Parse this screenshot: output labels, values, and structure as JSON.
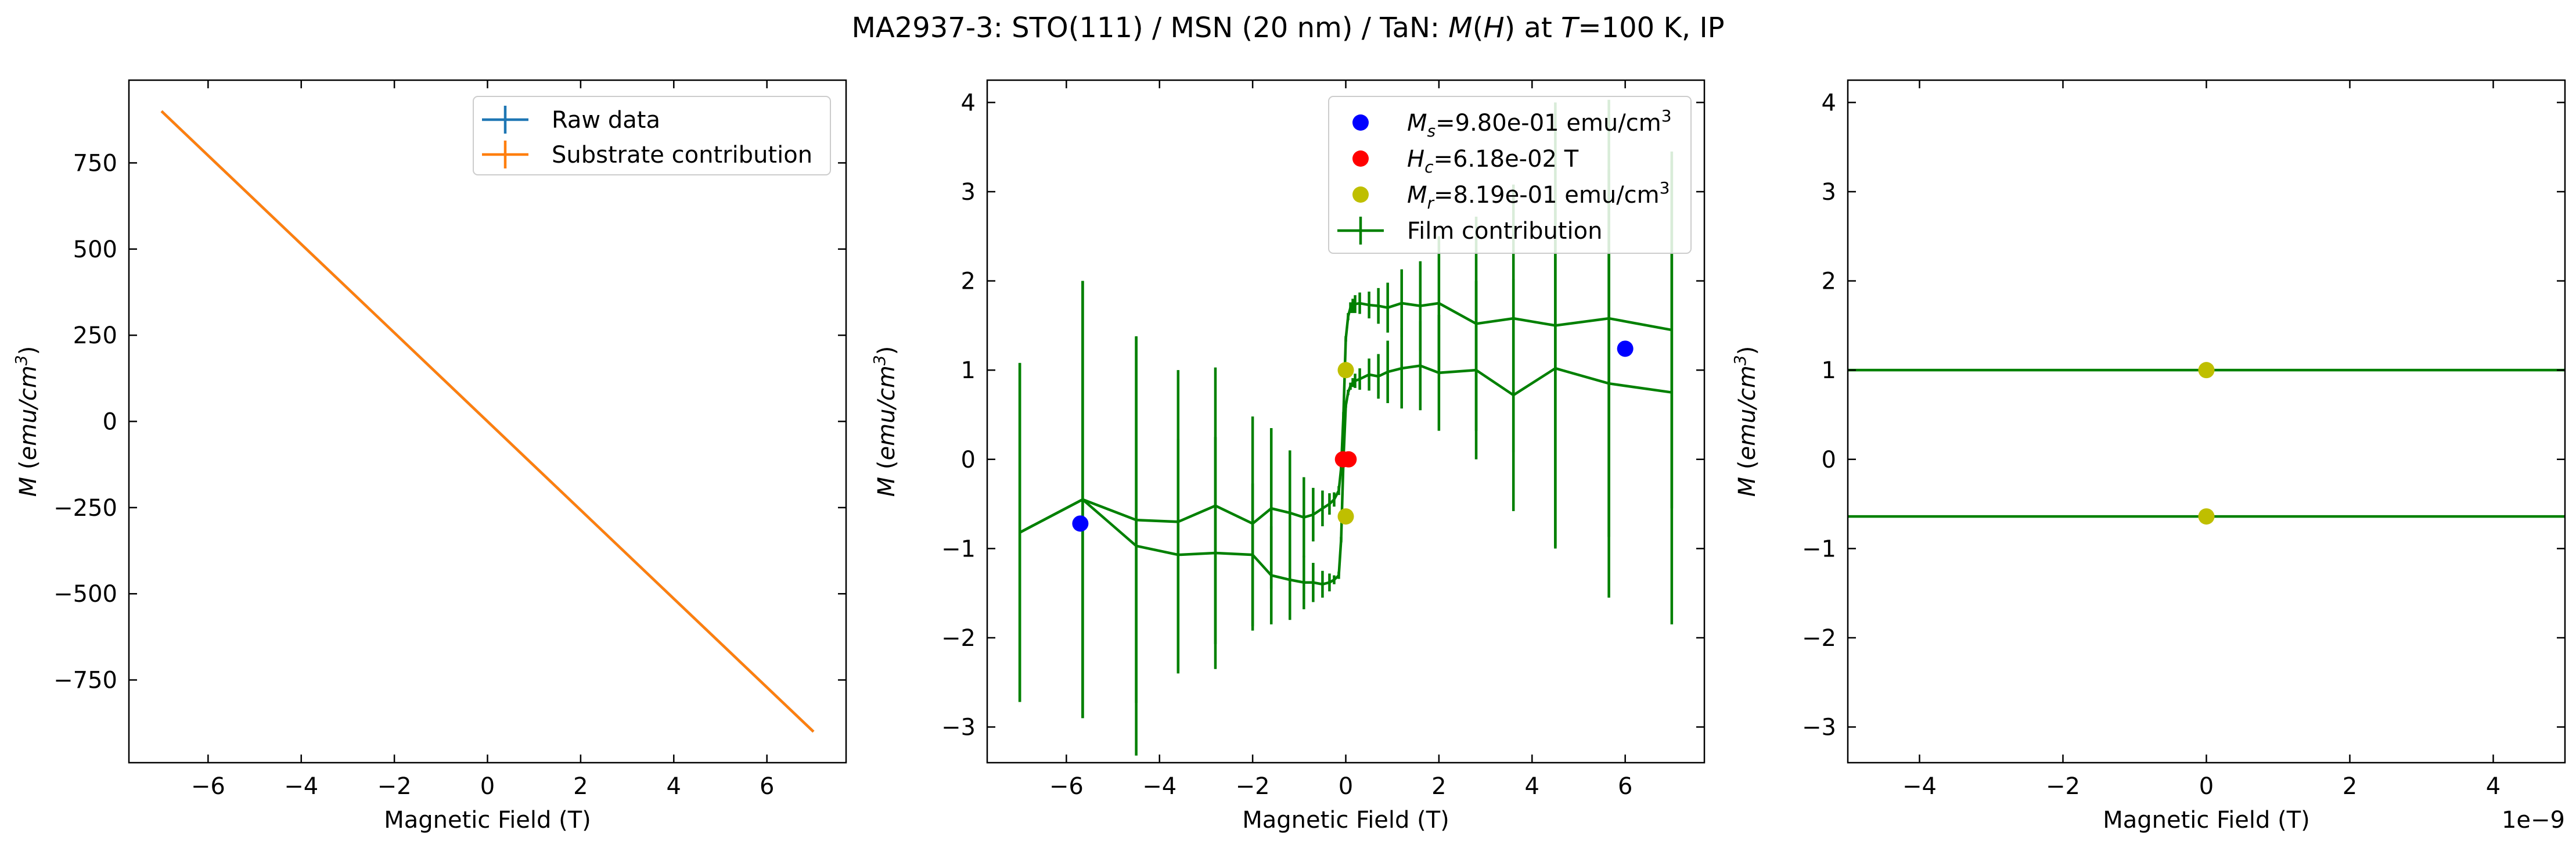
{
  "figure": {
    "title": "MA2937-3: STO(111)  / MSN (20 nm) / TaN: M(H) at T=100 K, IP",
    "title_parts": [
      {
        "t": "MA2937-3: STO(111)  / MSN (20 nm) / TaN: ",
        "i": false
      },
      {
        "t": "M",
        "i": true
      },
      {
        "t": "(",
        "i": false
      },
      {
        "t": "H",
        "i": true
      },
      {
        "t": ") at ",
        "i": false
      },
      {
        "t": "T",
        "i": true
      },
      {
        "t": "=100 K, IP",
        "i": false
      }
    ]
  },
  "colors": {
    "raw": "#1f77b4",
    "substrate": "#ff7f0e",
    "film": "#008000",
    "ms": "#0000ff",
    "hc": "#ff0000",
    "mr": "#bfbf00"
  },
  "chart_data": [
    {
      "type": "line",
      "xlabel": "Magnetic Field (T)",
      "ylabel": "M (emu/cm3)",
      "xlim": [
        -7.7,
        7.7
      ],
      "ylim": [
        -990,
        990
      ],
      "xticks": [
        -6,
        -4,
        -2,
        0,
        2,
        4,
        6
      ],
      "xtick_labels": [
        "−6",
        "−4",
        "−2",
        "0",
        "2",
        "4",
        "6"
      ],
      "yticks": [
        -750,
        -500,
        -250,
        0,
        250,
        500,
        750
      ],
      "ytick_labels": [
        "−750",
        "−500",
        "−250",
        "0",
        "250",
        "500",
        "750"
      ],
      "legend": {
        "position": "upper right",
        "entries": [
          "Raw data",
          "Substrate contribution"
        ]
      },
      "series": [
        {
          "name": "Raw data",
          "color_key": "raw",
          "x": [
            -7,
            7
          ],
          "y": [
            900,
            -900
          ]
        },
        {
          "name": "Substrate contribution",
          "color_key": "substrate",
          "x": [
            -7,
            7
          ],
          "y": [
            900,
            -900
          ]
        }
      ]
    },
    {
      "type": "line",
      "xlabel": "Magnetic Field (T)",
      "ylabel": "M (emu/cm3)",
      "xlim": [
        -7.7,
        7.7
      ],
      "ylim": [
        -3.4,
        4.25
      ],
      "xticks": [
        -6,
        -4,
        -2,
        0,
        2,
        4,
        6
      ],
      "xtick_labels": [
        "−6",
        "−4",
        "−2",
        "0",
        "2",
        "4",
        "6"
      ],
      "yticks": [
        -3,
        -2,
        -1,
        0,
        1,
        2,
        3,
        4
      ],
      "ytick_labels": [
        "−3",
        "−2",
        "−1",
        "0",
        "1",
        "2",
        "3",
        "4"
      ],
      "legend": {
        "position": "upper right",
        "entries": [
          {
            "sym": "M",
            "sub": "s",
            "text": "=9.80e-01 emu/cm",
            "sup": "3",
            "color_key": "ms",
            "kind": "dot"
          },
          {
            "sym": "H",
            "sub": "c",
            "text": "=6.18e-02 T",
            "sup": "",
            "color_key": "hc",
            "kind": "dot"
          },
          {
            "sym": "M",
            "sub": "r",
            "text": "=8.19e-01 emu/cm",
            "sup": "3",
            "color_key": "mr",
            "kind": "dot"
          },
          {
            "sym": "",
            "sub": "",
            "text": "Film contribution",
            "sup": "",
            "color_key": "film",
            "kind": "errline"
          }
        ]
      },
      "series": [
        {
          "name": "Film contribution",
          "color_key": "film",
          "branches": [
            {
              "x": [
                -7.0,
                -5.65,
                -4.5,
                -3.6,
                -2.8,
                -2.0,
                -1.6,
                -1.2,
                -0.9,
                -0.7,
                -0.5,
                -0.35,
                -0.25,
                -0.15,
                -0.1,
                -0.05,
                0.0,
                0.05,
                0.1,
                0.15,
                0.2,
                0.3,
                0.5,
                0.7,
                0.9,
                1.2,
                1.6,
                2.0,
                2.8,
                3.6,
                4.5,
                5.65,
                7.0
              ],
              "y": [
                -0.82,
                -0.45,
                -0.97,
                -1.07,
                -1.05,
                -1.07,
                -1.3,
                -1.35,
                -1.38,
                -1.38,
                -1.4,
                -1.38,
                -1.35,
                -1.3,
                -0.9,
                0.0,
                0.6,
                0.75,
                0.82,
                0.86,
                0.88,
                0.9,
                0.95,
                0.93,
                0.98,
                1.02,
                1.05,
                0.97,
                1.0,
                0.72,
                1.02,
                0.85,
                0.75
              ],
              "err": [
                1.9,
                2.45,
                2.35,
                1.3,
                1.3,
                0.8,
                0.55,
                0.45,
                0.3,
                0.22,
                0.15,
                0.1,
                0.05,
                0.04,
                0.03,
                0.02,
                0.02,
                0.03,
                0.04,
                0.05,
                0.08,
                0.12,
                0.18,
                0.25,
                0.35,
                0.45,
                0.5,
                0.65,
                1.0,
                1.3,
                2.0,
                2.4,
                2.6
              ]
            },
            {
              "x": [
                -7.0,
                -5.65,
                -4.5,
                -3.6,
                -2.8,
                -2.0,
                -1.6,
                -1.2,
                -0.9,
                -0.7,
                -0.5,
                -0.35,
                -0.25,
                -0.15,
                -0.1,
                -0.05,
                0.0,
                0.05,
                0.1,
                0.15,
                0.2,
                0.3,
                0.5,
                0.7,
                0.9,
                1.2,
                1.6,
                2.0,
                2.8,
                3.6,
                4.5,
                5.65,
                7.0
              ],
              "y": [
                -0.82,
                -0.45,
                -0.68,
                -0.7,
                -0.52,
                -0.72,
                -0.55,
                -0.6,
                -0.65,
                -0.62,
                -0.55,
                -0.5,
                -0.45,
                -0.35,
                -0.1,
                0.5,
                1.35,
                1.6,
                1.7,
                1.72,
                1.74,
                1.75,
                1.73,
                1.72,
                1.7,
                1.75,
                1.72,
                1.75,
                1.52,
                1.58,
                1.5,
                1.58,
                1.45
              ],
              "err": [
                1.9,
                2.45,
                2.05,
                1.7,
                1.55,
                1.2,
                0.9,
                0.7,
                0.45,
                0.3,
                0.2,
                0.12,
                0.08,
                0.05,
                0.04,
                0.03,
                0.03,
                0.04,
                0.06,
                0.08,
                0.1,
                0.12,
                0.15,
                0.2,
                0.28,
                0.38,
                0.5,
                0.75,
                1.2,
                1.5,
                2.5,
                2.45,
                2.0
              ]
            }
          ]
        }
      ],
      "markers": [
        {
          "label": "Ms",
          "color_key": "ms",
          "x": [
            -5.7,
            6.0
          ],
          "y": [
            -0.72,
            1.24
          ]
        },
        {
          "label": "Hc",
          "color_key": "hc",
          "x": [
            -0.06,
            0.06
          ],
          "y": [
            0.0,
            0.0
          ]
        },
        {
          "label": "Mr",
          "color_key": "mr",
          "x": [
            0.0,
            0.0
          ],
          "y": [
            1.0,
            -0.64
          ]
        }
      ]
    },
    {
      "type": "line",
      "xlabel": "Magnetic Field (T)",
      "ylabel": "M (emu/cm3)",
      "x_offset_label": "1e−9",
      "xlim": [
        -5,
        5
      ],
      "ylim": [
        -3.4,
        4.25
      ],
      "xticks": [
        -4,
        -2,
        0,
        2,
        4
      ],
      "xtick_labels": [
        "−4",
        "−2",
        "0",
        "2",
        "4"
      ],
      "yticks": [
        -3,
        -2,
        -1,
        0,
        1,
        2,
        3,
        4
      ],
      "ytick_labels": [
        "−3",
        "−2",
        "−1",
        "0",
        "1",
        "2",
        "3",
        "4"
      ],
      "series": [
        {
          "name": "Film contribution",
          "color_key": "film",
          "branches": [
            {
              "x": [
                -5,
                5
              ],
              "y": [
                1.0,
                1.0
              ],
              "err": [
                0,
                0
              ]
            },
            {
              "x": [
                -5,
                5
              ],
              "y": [
                -0.64,
                -0.64
              ],
              "err": [
                0,
                0
              ]
            }
          ]
        }
      ],
      "markers": [
        {
          "label": "Mr",
          "color_key": "mr",
          "x": [
            0,
            0
          ],
          "y": [
            1.0,
            -0.64
          ]
        }
      ]
    }
  ]
}
